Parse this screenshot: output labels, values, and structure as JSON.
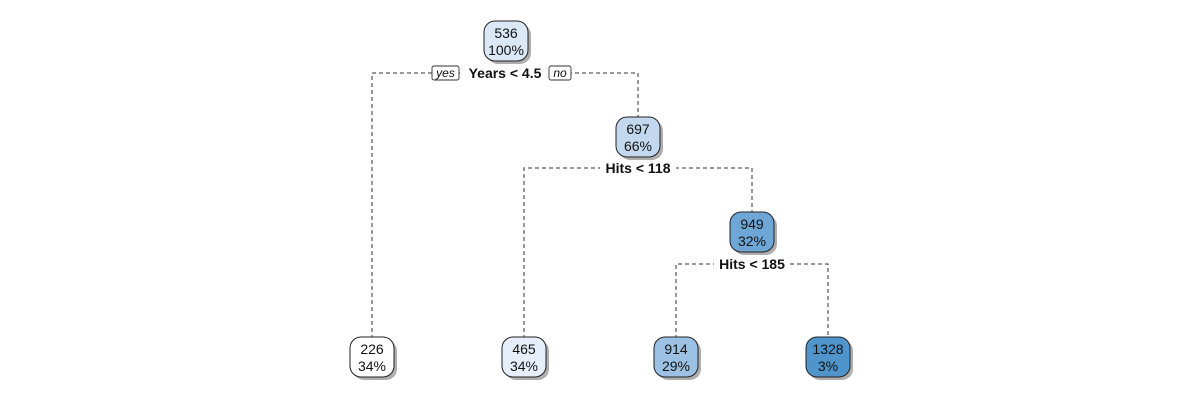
{
  "tree": {
    "nodes": [
      {
        "id": "n1",
        "value": "536",
        "percent": "100%",
        "fill": "#dbe8f6"
      },
      {
        "id": "n2",
        "value": "226",
        "percent": "34%",
        "fill": "#ffffff"
      },
      {
        "id": "n3",
        "value": "697",
        "percent": "66%",
        "fill": "#c3d8ee"
      },
      {
        "id": "n4",
        "value": "465",
        "percent": "34%",
        "fill": "#e6eff9"
      },
      {
        "id": "n5",
        "value": "949",
        "percent": "32%",
        "fill": "#6ea6d5"
      },
      {
        "id": "n6",
        "value": "914",
        "percent": "29%",
        "fill": "#9cc1e4"
      },
      {
        "id": "n7",
        "value": "1328",
        "percent": "3%",
        "fill": "#4f95cc"
      }
    ],
    "splits": [
      {
        "id": "s1",
        "label": "Years < 4.5",
        "yes_label": "yes",
        "no_label": "no"
      },
      {
        "id": "s2",
        "label": "Hits < 118"
      },
      {
        "id": "s3",
        "label": "Hits < 185"
      }
    ]
  }
}
